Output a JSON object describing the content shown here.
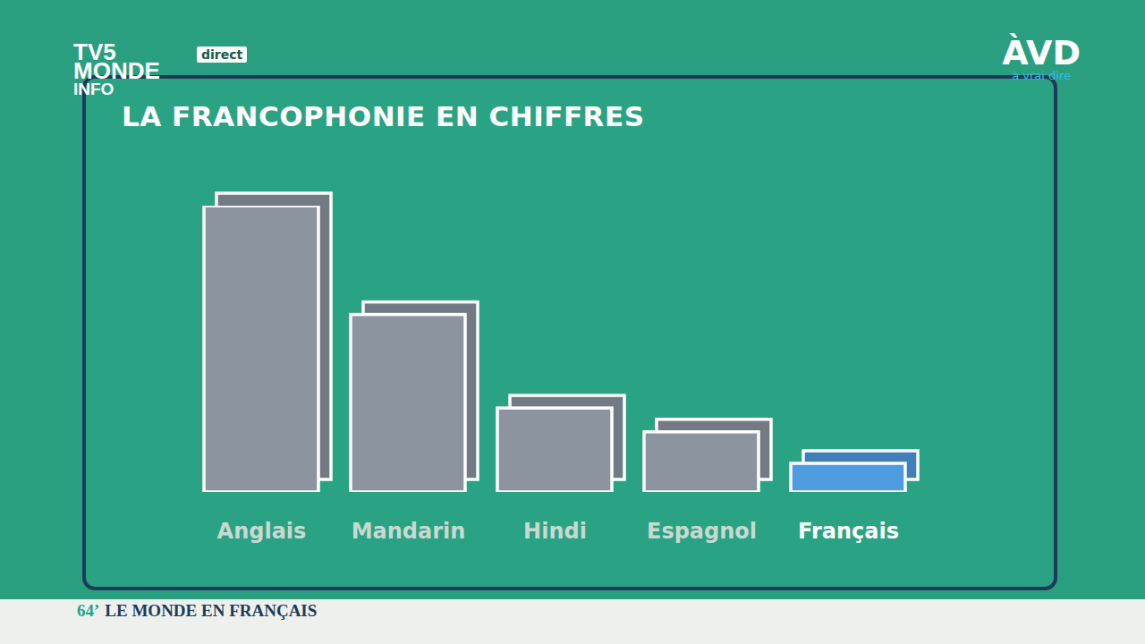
{
  "chart_data": {
    "type": "bar",
    "title": "LA FRANCOPHONIE EN CHIFFRES",
    "categories": [
      "Anglais",
      "Mandarin",
      "Hindi",
      "Espagnol",
      "Français"
    ],
    "values": [
      300,
      186,
      88,
      63,
      30
    ],
    "colors": [
      "#8b949f",
      "#8b949f",
      "#8b949f",
      "#8b949f",
      "#4f9be0"
    ],
    "ylim": [
      0,
      300
    ],
    "tick_labels": "x",
    "grid": false
  },
  "overlay": {
    "channel": [
      "TV5",
      "MONDE",
      "INFO"
    ],
    "live": "direct",
    "show_logo": "ÀVD",
    "show_tagline": "à vrai dire",
    "programme_time": "64’",
    "programme": "LE MONDE EN FRANÇAIS"
  }
}
